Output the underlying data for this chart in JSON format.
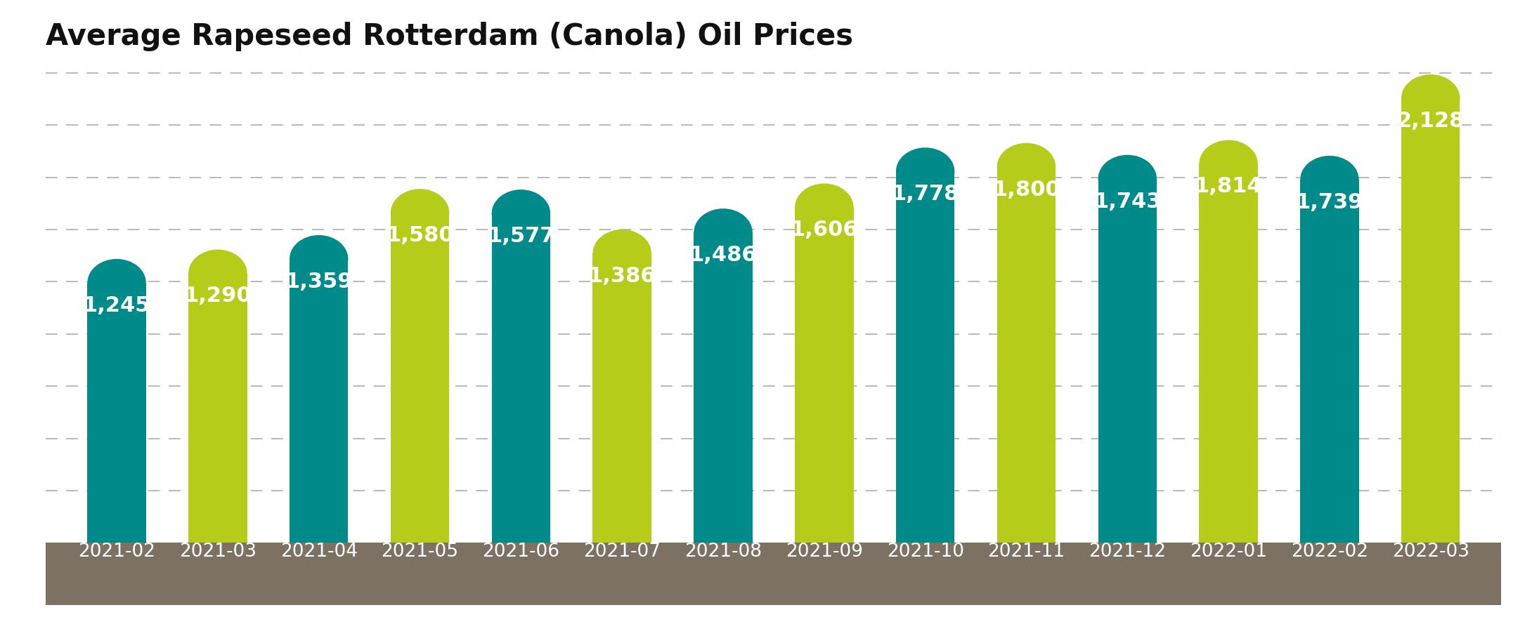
{
  "title": "Average Rapeseed Rotterdam (Canola) Oil Prices",
  "categories": [
    "2021-02",
    "2021-03",
    "2021-04",
    "2021-05",
    "2021-06",
    "2021-07",
    "2021-08",
    "2021-09",
    "2021-10",
    "2021-11",
    "2021-12",
    "2022-01",
    "2022-02",
    "2022-03"
  ],
  "values": [
    1245,
    1290,
    1359,
    1580,
    1577,
    1386,
    1486,
    1606,
    1778,
    1800,
    1743,
    1814,
    1739,
    2128
  ],
  "colors": [
    "#008b8b",
    "#b5cc18",
    "#008b8b",
    "#b5cc18",
    "#008b8b",
    "#b5cc18",
    "#008b8b",
    "#b5cc18",
    "#008b8b",
    "#b5cc18",
    "#008b8b",
    "#b5cc18",
    "#008b8b",
    "#b5cc18"
  ],
  "background_color": "#ffffff",
  "xlabel_bg_color": "#7d7163",
  "xlabel_text_color": "#ffffff",
  "value_label_color": "#ffffff",
  "title_color": "#111111",
  "grid_color": "#bbbbbb",
  "ylim": [
    0,
    2300
  ],
  "title_fontsize": 30,
  "value_fontsize": 22,
  "xlabel_fontsize": 19,
  "bar_width": 0.58
}
